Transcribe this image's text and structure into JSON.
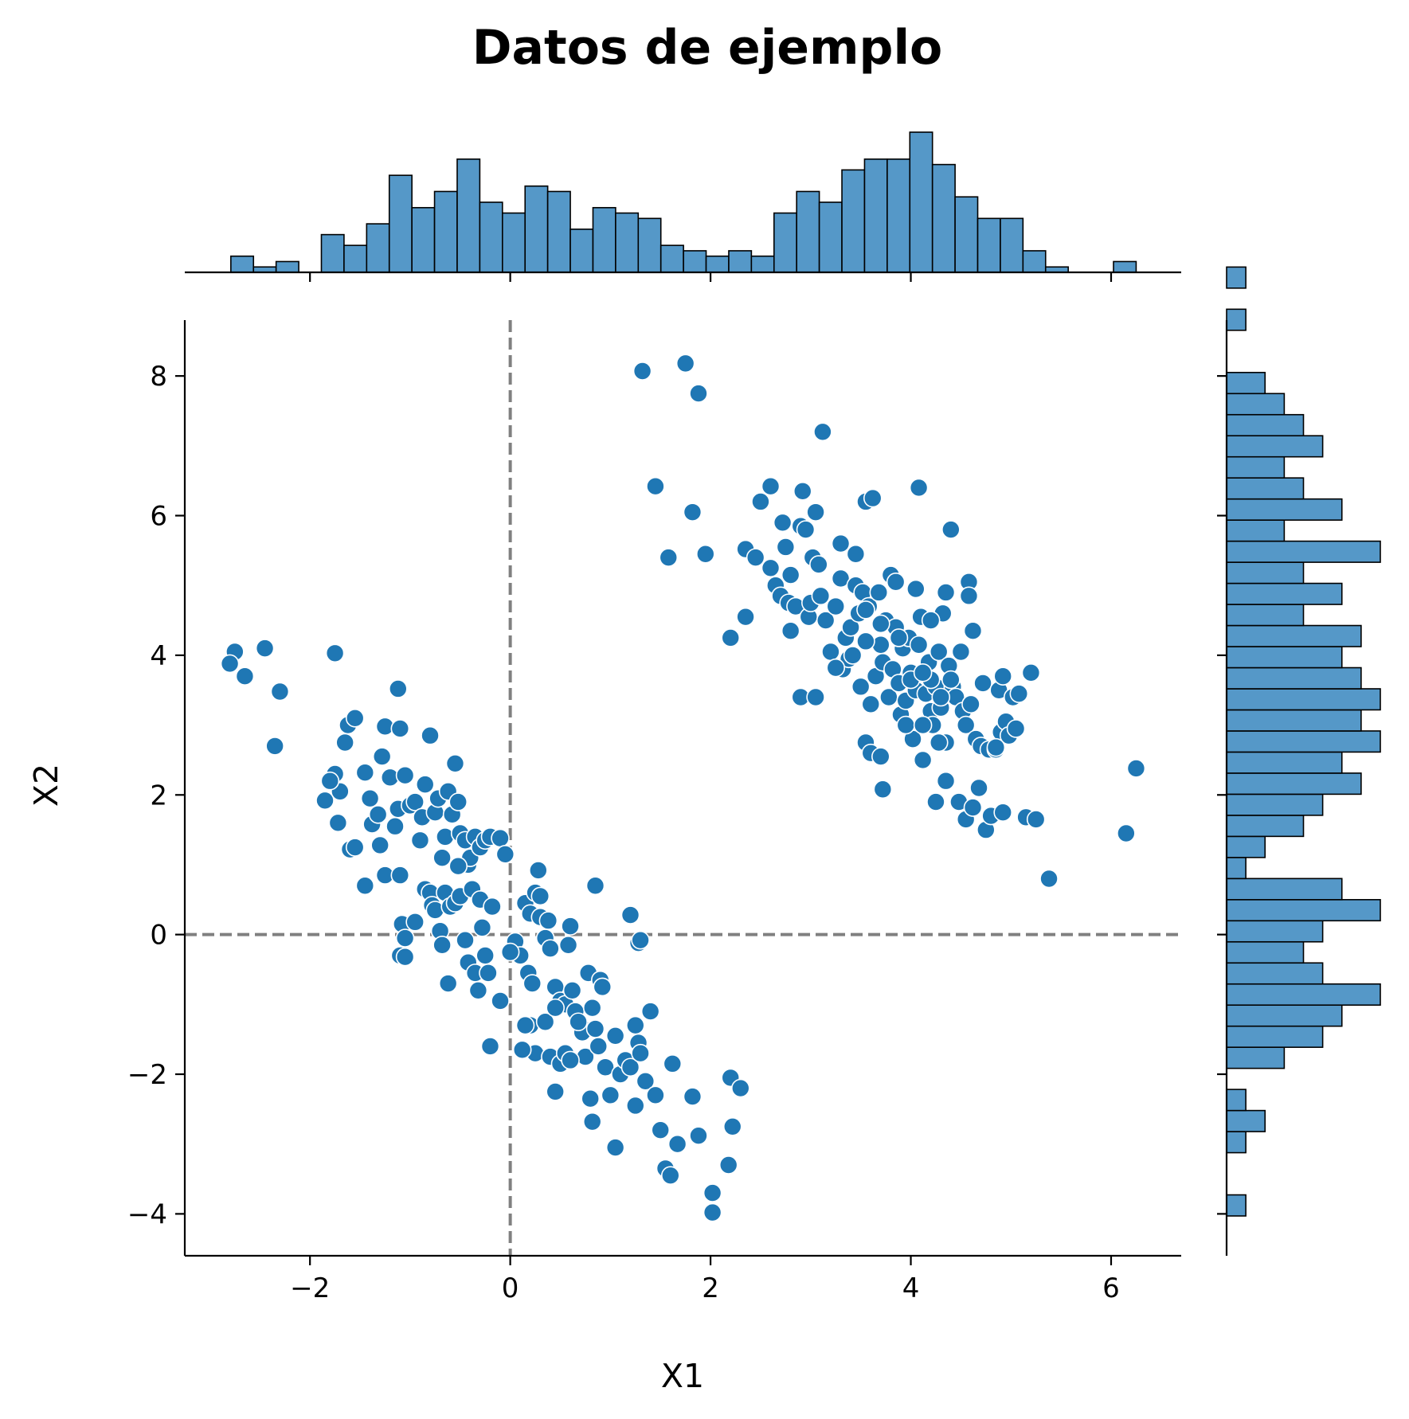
{
  "chart_data": {
    "type": "scatter",
    "title": "Datos de ejemplo",
    "xlabel": "X1",
    "ylabel": "X2",
    "xlim": [
      -3.25,
      6.7
    ],
    "ylim": [
      -4.6,
      8.8
    ],
    "xticks": [
      -2,
      0,
      2,
      4,
      6
    ],
    "yticks": [
      -4,
      -2,
      0,
      2,
      4,
      6,
      8
    ],
    "xtick_labels": [
      "−2",
      "0",
      "2",
      "4",
      "6"
    ],
    "ytick_labels": [
      "−4",
      "−2",
      "0",
      "2",
      "4",
      "6",
      "8"
    ],
    "reference_lines": {
      "x": 0,
      "y": 0,
      "style": "dashed",
      "color": "#808080"
    },
    "marginal_histograms": true,
    "grid": false,
    "colors": {
      "points": "#1f77b4",
      "bars": "#5598c8",
      "edge": "#000000",
      "ref": "#808080"
    },
    "points": [
      [
        -2.75,
        4.05
      ],
      [
        -2.8,
        3.88
      ],
      [
        -2.65,
        3.7
      ],
      [
        -2.45,
        4.1
      ],
      [
        -2.3,
        3.48
      ],
      [
        -2.35,
        2.7
      ],
      [
        -1.75,
        4.03
      ],
      [
        -1.75,
        2.3
      ],
      [
        -1.7,
        2.05
      ],
      [
        -1.65,
        2.75
      ],
      [
        -1.62,
        3.0
      ],
      [
        -1.55,
        3.1
      ],
      [
        -1.8,
        2.2
      ],
      [
        -1.85,
        1.92
      ],
      [
        -1.72,
        1.6
      ],
      [
        -1.6,
        1.22
      ],
      [
        -1.55,
        1.25
      ],
      [
        -1.45,
        2.32
      ],
      [
        -1.4,
        1.95
      ],
      [
        -1.38,
        1.58
      ],
      [
        -1.3,
        1.28
      ],
      [
        -1.32,
        1.72
      ],
      [
        -1.28,
        2.55
      ],
      [
        -1.25,
        2.98
      ],
      [
        -1.2,
        2.25
      ],
      [
        -1.15,
        1.55
      ],
      [
        -1.12,
        1.8
      ],
      [
        -1.1,
        2.95
      ],
      [
        -1.12,
        3.52
      ],
      [
        -1.05,
        2.28
      ],
      [
        -1.0,
        1.85
      ],
      [
        -0.95,
        1.9
      ],
      [
        -0.88,
        1.68
      ],
      [
        -0.9,
        1.35
      ],
      [
        -0.85,
        2.15
      ],
      [
        -0.8,
        2.85
      ],
      [
        -0.75,
        1.75
      ],
      [
        -0.72,
        1.95
      ],
      [
        -0.68,
        1.1
      ],
      [
        -0.65,
        1.4
      ],
      [
        -0.62,
        2.05
      ],
      [
        -0.58,
        1.72
      ],
      [
        -0.55,
        2.45
      ],
      [
        -0.52,
        1.9
      ],
      [
        -0.5,
        1.45
      ],
      [
        -0.45,
        1.35
      ],
      [
        -0.42,
        1.0
      ],
      [
        -0.4,
        1.1
      ],
      [
        -0.35,
        1.4
      ],
      [
        -0.3,
        1.25
      ],
      [
        -0.25,
        1.35
      ],
      [
        -0.2,
        1.4
      ],
      [
        -0.1,
        1.38
      ],
      [
        -0.05,
        1.15
      ],
      [
        -1.45,
        0.7
      ],
      [
        -1.25,
        0.85
      ],
      [
        -1.1,
        0.85
      ],
      [
        -1.08,
        0.15
      ],
      [
        -1.05,
        -0.05
      ],
      [
        -0.95,
        0.18
      ],
      [
        -0.85,
        0.65
      ],
      [
        -0.8,
        0.6
      ],
      [
        -0.78,
        0.42
      ],
      [
        -0.75,
        0.35
      ],
      [
        -0.7,
        0.05
      ],
      [
        -0.68,
        -0.15
      ],
      [
        -0.65,
        0.6
      ],
      [
        -0.6,
        0.4
      ],
      [
        -0.55,
        0.45
      ],
      [
        -0.52,
        0.98
      ],
      [
        -0.5,
        0.55
      ],
      [
        -0.45,
        -0.08
      ],
      [
        -0.42,
        -0.4
      ],
      [
        -0.38,
        0.65
      ],
      [
        -0.35,
        -0.55
      ],
      [
        -0.32,
        -0.8
      ],
      [
        -0.3,
        0.5
      ],
      [
        -0.28,
        0.1
      ],
      [
        -0.25,
        -0.3
      ],
      [
        -0.22,
        -0.55
      ],
      [
        -0.18,
        0.4
      ],
      [
        -1.1,
        -0.3
      ],
      [
        -1.05,
        -0.32
      ],
      [
        -0.62,
        -0.7
      ],
      [
        -0.1,
        -0.95
      ],
      [
        -0.2,
        -1.6
      ],
      [
        0.05,
        -0.1
      ],
      [
        0.1,
        -0.3
      ],
      [
        0.15,
        0.45
      ],
      [
        0.18,
        -0.55
      ],
      [
        0.2,
        0.3
      ],
      [
        0.25,
        0.6
      ],
      [
        0.28,
        0.92
      ],
      [
        0.3,
        0.25
      ],
      [
        0.35,
        -0.05
      ],
      [
        0.38,
        0.2
      ],
      [
        0.4,
        -0.2
      ],
      [
        0.45,
        -0.75
      ],
      [
        0.5,
        -0.95
      ],
      [
        0.55,
        -1.0
      ],
      [
        0.58,
        -0.15
      ],
      [
        0.6,
        0.12
      ],
      [
        0.62,
        -0.8
      ],
      [
        0.65,
        -1.1
      ],
      [
        0.7,
        -1.3
      ],
      [
        0.72,
        -1.4
      ],
      [
        0.75,
        -1.75
      ],
      [
        0.78,
        -0.55
      ],
      [
        0.82,
        -1.05
      ],
      [
        0.85,
        -1.35
      ],
      [
        0.88,
        -1.6
      ],
      [
        0.9,
        -0.65
      ],
      [
        0.92,
        -0.75
      ],
      [
        0.95,
        -1.9
      ],
      [
        1.0,
        -2.3
      ],
      [
        1.05,
        -1.45
      ],
      [
        1.1,
        -2.0
      ],
      [
        1.15,
        -1.8
      ],
      [
        1.2,
        -1.9
      ],
      [
        1.25,
        -1.3
      ],
      [
        1.28,
        -1.55
      ],
      [
        1.3,
        -1.7
      ],
      [
        1.35,
        -2.1
      ],
      [
        1.4,
        -1.1
      ],
      [
        1.45,
        -2.3
      ],
      [
        1.5,
        -2.8
      ],
      [
        1.55,
        -3.35
      ],
      [
        1.6,
        -3.45
      ],
      [
        1.62,
        -1.85
      ],
      [
        1.67,
        -3.0
      ],
      [
        1.82,
        -2.32
      ],
      [
        1.88,
        -2.88
      ],
      [
        2.02,
        -3.7
      ],
      [
        2.02,
        -3.98
      ],
      [
        2.18,
        -3.3
      ],
      [
        2.22,
        -2.75
      ],
      [
        2.2,
        -2.05
      ],
      [
        2.3,
        -2.2
      ],
      [
        0.2,
        -1.3
      ],
      [
        0.25,
        -1.7
      ],
      [
        0.35,
        -1.25
      ],
      [
        0.4,
        -1.75
      ],
      [
        0.45,
        -1.05
      ],
      [
        0.5,
        -1.85
      ],
      [
        0.55,
        -1.7
      ],
      [
        0.6,
        -1.8
      ],
      [
        0.68,
        -1.25
      ],
      [
        0.8,
        -2.35
      ],
      [
        0.82,
        -2.68
      ],
      [
        1.05,
        -3.05
      ],
      [
        1.25,
        -2.45
      ],
      [
        0.45,
        -2.25
      ],
      [
        0.15,
        -1.3
      ],
      [
        0.12,
        -1.65
      ],
      [
        0.0,
        -0.25
      ],
      [
        1.2,
        0.28
      ],
      [
        1.28,
        -0.12
      ],
      [
        1.3,
        -0.08
      ],
      [
        0.85,
        0.7
      ],
      [
        0.3,
        0.55
      ],
      [
        0.22,
        -0.7
      ],
      [
        1.32,
        8.07
      ],
      [
        1.75,
        8.18
      ],
      [
        1.88,
        7.75
      ],
      [
        1.45,
        6.42
      ],
      [
        1.82,
        6.05
      ],
      [
        1.58,
        5.4
      ],
      [
        1.95,
        5.45
      ],
      [
        2.2,
        4.25
      ],
      [
        2.35,
        4.55
      ],
      [
        2.35,
        5.52
      ],
      [
        2.5,
        6.2
      ],
      [
        2.6,
        6.42
      ],
      [
        2.45,
        5.4
      ],
      [
        2.6,
        5.25
      ],
      [
        2.65,
        5.0
      ],
      [
        2.7,
        4.85
      ],
      [
        2.72,
        5.9
      ],
      [
        2.75,
        5.55
      ],
      [
        2.78,
        4.75
      ],
      [
        2.8,
        5.15
      ],
      [
        2.85,
        4.7
      ],
      [
        2.9,
        5.85
      ],
      [
        2.92,
        6.35
      ],
      [
        2.95,
        5.8
      ],
      [
        2.98,
        4.55
      ],
      [
        3.0,
        4.75
      ],
      [
        3.02,
        5.4
      ],
      [
        3.05,
        6.05
      ],
      [
        3.08,
        5.3
      ],
      [
        3.1,
        4.85
      ],
      [
        3.12,
        7.2
      ],
      [
        3.15,
        4.5
      ],
      [
        3.2,
        4.05
      ],
      [
        3.25,
        4.7
      ],
      [
        3.3,
        5.1
      ],
      [
        3.32,
        3.8
      ],
      [
        3.35,
        4.25
      ],
      [
        3.38,
        3.95
      ],
      [
        3.4,
        4.4
      ],
      [
        3.42,
        4.0
      ],
      [
        3.45,
        5.0
      ],
      [
        3.48,
        4.6
      ],
      [
        3.5,
        3.55
      ],
      [
        3.52,
        4.9
      ],
      [
        3.55,
        6.2
      ],
      [
        3.58,
        4.7
      ],
      [
        3.6,
        3.3
      ],
      [
        3.62,
        6.25
      ],
      [
        3.65,
        3.7
      ],
      [
        3.68,
        4.9
      ],
      [
        3.7,
        4.15
      ],
      [
        3.72,
        3.9
      ],
      [
        3.75,
        4.5
      ],
      [
        3.78,
        3.4
      ],
      [
        3.8,
        5.15
      ],
      [
        3.82,
        3.8
      ],
      [
        3.85,
        4.4
      ],
      [
        3.88,
        3.6
      ],
      [
        3.9,
        3.15
      ],
      [
        3.92,
        4.1
      ],
      [
        3.95,
        3.35
      ],
      [
        3.98,
        4.25
      ],
      [
        4.0,
        3.75
      ],
      [
        4.02,
        2.8
      ],
      [
        4.05,
        3.5
      ],
      [
        4.08,
        6.4
      ],
      [
        4.1,
        4.55
      ],
      [
        4.12,
        2.5
      ],
      [
        4.15,
        3.45
      ],
      [
        4.18,
        3.9
      ],
      [
        4.2,
        3.2
      ],
      [
        4.22,
        3.0
      ],
      [
        4.25,
        3.55
      ],
      [
        4.28,
        4.05
      ],
      [
        4.3,
        3.25
      ],
      [
        4.32,
        4.6
      ],
      [
        4.35,
        2.75
      ],
      [
        4.38,
        3.85
      ],
      [
        4.4,
        5.8
      ],
      [
        4.42,
        3.55
      ],
      [
        4.45,
        3.4
      ],
      [
        4.48,
        1.9
      ],
      [
        4.5,
        4.05
      ],
      [
        4.52,
        3.2
      ],
      [
        4.55,
        3.0
      ],
      [
        4.58,
        5.05
      ],
      [
        4.6,
        3.3
      ],
      [
        4.62,
        4.35
      ],
      [
        4.65,
        2.8
      ],
      [
        4.68,
        2.1
      ],
      [
        4.7,
        2.7
      ],
      [
        4.72,
        3.6
      ],
      [
        4.75,
        1.5
      ],
      [
        4.78,
        2.65
      ],
      [
        4.8,
        1.7
      ],
      [
        4.85,
        2.65
      ],
      [
        4.88,
        3.5
      ],
      [
        4.9,
        2.9
      ],
      [
        4.92,
        3.7
      ],
      [
        4.95,
        3.05
      ],
      [
        4.98,
        2.85
      ],
      [
        5.02,
        3.4
      ],
      [
        5.05,
        2.95
      ],
      [
        5.08,
        3.45
      ],
      [
        5.15,
        1.68
      ],
      [
        5.2,
        3.75
      ],
      [
        5.25,
        1.65
      ],
      [
        5.38,
        0.8
      ],
      [
        6.15,
        1.45
      ],
      [
        6.25,
        2.38
      ],
      [
        2.9,
        3.4
      ],
      [
        3.05,
        3.4
      ],
      [
        3.55,
        2.75
      ],
      [
        3.6,
        2.6
      ],
      [
        3.7,
        2.55
      ],
      [
        3.72,
        2.08
      ],
      [
        4.25,
        1.9
      ],
      [
        4.35,
        2.2
      ],
      [
        4.55,
        1.65
      ],
      [
        4.62,
        1.82
      ],
      [
        4.85,
        2.68
      ],
      [
        4.92,
        1.75
      ],
      [
        3.3,
        5.6
      ],
      [
        3.45,
        5.45
      ],
      [
        3.85,
        5.05
      ],
      [
        4.05,
        4.95
      ],
      [
        4.35,
        4.9
      ],
      [
        4.58,
        4.85
      ],
      [
        4.2,
        4.5
      ],
      [
        3.55,
        4.2
      ],
      [
        3.25,
        3.82
      ],
      [
        2.8,
        4.35
      ],
      [
        4.0,
        3.65
      ],
      [
        4.2,
        3.65
      ],
      [
        4.4,
        3.65
      ],
      [
        3.95,
        3.0
      ],
      [
        4.12,
        3.0
      ],
      [
        4.28,
        2.75
      ],
      [
        3.55,
        4.65
      ],
      [
        3.7,
        4.45
      ],
      [
        3.88,
        4.25
      ],
      [
        4.08,
        4.15
      ],
      [
        4.12,
        3.75
      ],
      [
        4.3,
        3.4
      ]
    ],
    "top_histogram": {
      "bin_start": -2.79,
      "bin_width": 0.226,
      "counts": [
        3,
        1,
        2,
        0,
        7,
        5,
        9,
        18,
        12,
        15,
        21,
        13,
        11,
        16,
        15,
        8,
        12,
        11,
        10,
        5,
        4,
        3,
        4,
        3,
        11,
        15,
        13,
        19,
        21,
        21,
        26,
        20,
        14,
        10,
        10,
        4,
        1,
        0,
        0,
        2
      ]
    },
    "right_histogram": {
      "bin_start": -4.03,
      "bin_width": 0.302,
      "counts": [
        1,
        0,
        0,
        1,
        2,
        1,
        0,
        3,
        5,
        6,
        8,
        5,
        4,
        5,
        8,
        6,
        1,
        2,
        4,
        5,
        7,
        6,
        8,
        7,
        8,
        7,
        6,
        7,
        4,
        6,
        4,
        8,
        3,
        6,
        4,
        3,
        5,
        4,
        3,
        2,
        0,
        0,
        1,
        0,
        1,
        0
      ]
    }
  }
}
